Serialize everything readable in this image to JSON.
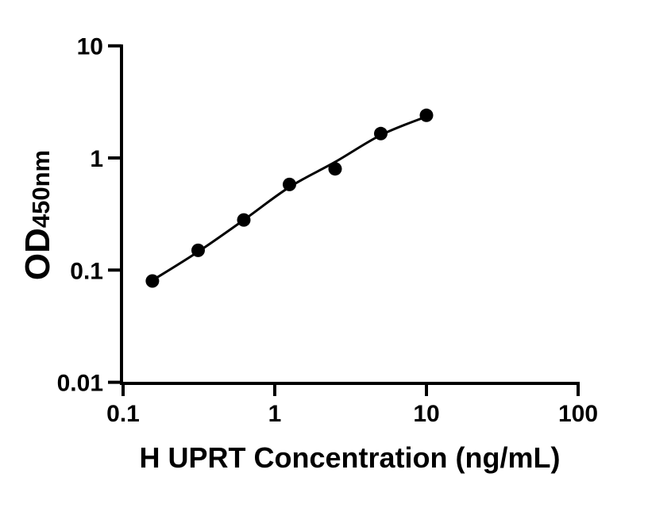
{
  "chart_data": {
    "type": "scatter",
    "title": "",
    "xlabel": "H UPRT Concentration (ng/mL)",
    "ylabel": "OD450nm",
    "ylabel_main": "OD",
    "ylabel_sub": "450nm",
    "x_scale": "log10",
    "y_scale": "log10",
    "xlim": [
      0.1,
      100
    ],
    "ylim": [
      0.01,
      10
    ],
    "x_ticks": [
      0.1,
      1,
      10,
      100
    ],
    "x_tick_labels": [
      "0.1",
      "1",
      "10",
      "100"
    ],
    "y_ticks": [
      10,
      1,
      0.1,
      0.01
    ],
    "y_tick_labels": [
      "10",
      "1",
      "0.1",
      "0.01"
    ],
    "grid": false,
    "legend": false,
    "background_color": "#ffffff",
    "marker_color": "#000000",
    "line_color": "#000000",
    "series": [
      {
        "name": "standard-points",
        "render": "points",
        "x": [
          0.156,
          0.3125,
          0.625,
          1.25,
          2.5,
          5,
          10
        ],
        "y": [
          0.08,
          0.15,
          0.28,
          0.58,
          0.8,
          1.65,
          2.4
        ]
      },
      {
        "name": "fit-curve",
        "render": "smooth-line",
        "x": [
          0.156,
          0.3125,
          0.625,
          1.25,
          2.5,
          5,
          10
        ],
        "y": [
          0.081,
          0.146,
          0.28,
          0.55,
          0.92,
          1.6,
          2.34
        ]
      }
    ]
  }
}
